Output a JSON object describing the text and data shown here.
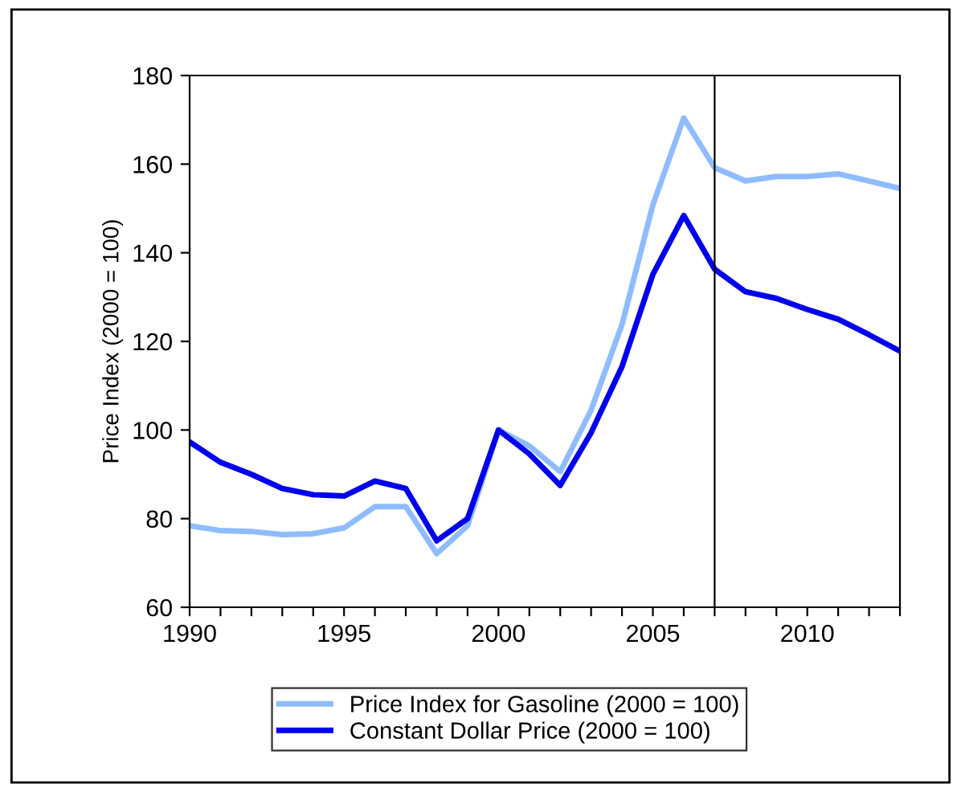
{
  "chart_data": {
    "type": "line",
    "ylabel": "Price Index (2000 = 100)",
    "x": [
      1990,
      1991,
      1992,
      1993,
      1994,
      1995,
      1996,
      1997,
      1998,
      1999,
      2000,
      2001,
      2002,
      2003,
      2004,
      2005,
      2006,
      2007,
      2008,
      2009,
      2010,
      2011,
      2012,
      2013
    ],
    "series": [
      {
        "name": "Price Index for Gasoline (2000 = 100)",
        "color": "#8fbcff",
        "values": [
          78.4,
          77.3,
          77.1,
          76.4,
          76.6,
          77.9,
          82.7,
          82.7,
          72.1,
          78.4,
          100,
          96.4,
          90.6,
          104.5,
          123.8,
          150.8,
          170.4,
          159.2,
          156.2,
          157.2,
          157.2,
          157.8,
          156.2,
          154.5
        ]
      },
      {
        "name": "Constant Dollar Price (2000 = 100)",
        "color": "#0000ee",
        "values": [
          97.3,
          92.7,
          90,
          86.8,
          85.4,
          85.1,
          88.5,
          86.8,
          75,
          80,
          100,
          94.6,
          87.5,
          99.4,
          114.3,
          135.1,
          148.4,
          136.3,
          131.2,
          129.7,
          127.2,
          125,
          121.5,
          117.8
        ]
      }
    ],
    "xlim": [
      1990,
      2013
    ],
    "xticks": [
      1990,
      {
        "value": 1991,
        "label": null
      },
      {
        "value": 1992,
        "label": null
      },
      {
        "value": 1993,
        "label": null
      },
      {
        "value": 1994,
        "label": null
      },
      1995,
      {
        "value": 1996,
        "label": null
      },
      {
        "value": 1997,
        "label": null
      },
      {
        "value": 1998,
        "label": null
      },
      {
        "value": 1999,
        "label": null
      },
      2000,
      {
        "value": 2001,
        "label": null
      },
      {
        "value": 2002,
        "label": null
      },
      {
        "value": 2003,
        "label": null
      },
      {
        "value": 2004,
        "label": null
      },
      2005,
      {
        "value": 2006,
        "label": null
      },
      {
        "value": 2007,
        "label": null
      },
      {
        "value": 2008,
        "label": null
      },
      {
        "value": 2009,
        "label": null
      },
      2010,
      {
        "value": 2011,
        "label": null
      },
      {
        "value": 2012,
        "label": null
      },
      {
        "value": 2013,
        "label": null
      }
    ],
    "ylim": [
      60,
      180
    ],
    "yticks": [
      60,
      80,
      100,
      120,
      140,
      160,
      180
    ],
    "ref_lines": [
      {
        "axis": "x",
        "value": 2007,
        "color": "#000000"
      }
    ],
    "grid": false,
    "legend": "bottom",
    "line_style": "solid",
    "marker": "none"
  }
}
